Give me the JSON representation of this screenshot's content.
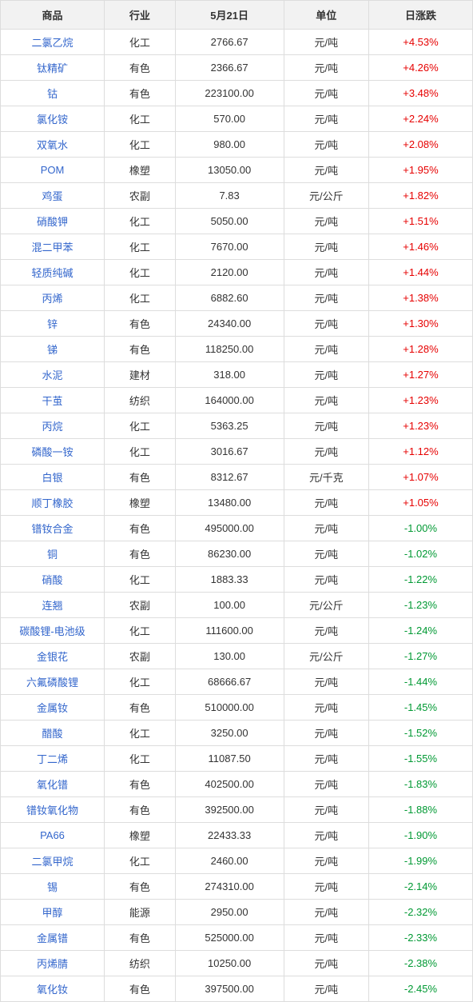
{
  "table": {
    "columns": [
      "商品",
      "行业",
      "5月21日",
      "单位",
      "日涨跌"
    ],
    "header_bg": "#f2f2f2",
    "header_color": "#333333",
    "border_color": "#dddddd",
    "product_color": "#3366cc",
    "positive_color": "#e60000",
    "negative_color": "#009933",
    "text_color": "#333333",
    "font_size": 13,
    "rows": [
      {
        "product": "二氯乙烷",
        "industry": "化工",
        "price": "2766.67",
        "unit": "元/吨",
        "change": "+4.53%",
        "dir": "pos"
      },
      {
        "product": "钛精矿",
        "industry": "有色",
        "price": "2366.67",
        "unit": "元/吨",
        "change": "+4.26%",
        "dir": "pos"
      },
      {
        "product": "钴",
        "industry": "有色",
        "price": "223100.00",
        "unit": "元/吨",
        "change": "+3.48%",
        "dir": "pos"
      },
      {
        "product": "氯化铵",
        "industry": "化工",
        "price": "570.00",
        "unit": "元/吨",
        "change": "+2.24%",
        "dir": "pos"
      },
      {
        "product": "双氧水",
        "industry": "化工",
        "price": "980.00",
        "unit": "元/吨",
        "change": "+2.08%",
        "dir": "pos"
      },
      {
        "product": "POM",
        "industry": "橡塑",
        "price": "13050.00",
        "unit": "元/吨",
        "change": "+1.95%",
        "dir": "pos"
      },
      {
        "product": "鸡蛋",
        "industry": "农副",
        "price": "7.83",
        "unit": "元/公斤",
        "change": "+1.82%",
        "dir": "pos"
      },
      {
        "product": "硝酸钾",
        "industry": "化工",
        "price": "5050.00",
        "unit": "元/吨",
        "change": "+1.51%",
        "dir": "pos"
      },
      {
        "product": "混二甲苯",
        "industry": "化工",
        "price": "7670.00",
        "unit": "元/吨",
        "change": "+1.46%",
        "dir": "pos"
      },
      {
        "product": "轻质纯碱",
        "industry": "化工",
        "price": "2120.00",
        "unit": "元/吨",
        "change": "+1.44%",
        "dir": "pos"
      },
      {
        "product": "丙烯",
        "industry": "化工",
        "price": "6882.60",
        "unit": "元/吨",
        "change": "+1.38%",
        "dir": "pos"
      },
      {
        "product": "锌",
        "industry": "有色",
        "price": "24340.00",
        "unit": "元/吨",
        "change": "+1.30%",
        "dir": "pos"
      },
      {
        "product": "锑",
        "industry": "有色",
        "price": "118250.00",
        "unit": "元/吨",
        "change": "+1.28%",
        "dir": "pos"
      },
      {
        "product": "水泥",
        "industry": "建材",
        "price": "318.00",
        "unit": "元/吨",
        "change": "+1.27%",
        "dir": "pos"
      },
      {
        "product": "干茧",
        "industry": "纺织",
        "price": "164000.00",
        "unit": "元/吨",
        "change": "+1.23%",
        "dir": "pos"
      },
      {
        "product": "丙烷",
        "industry": "化工",
        "price": "5363.25",
        "unit": "元/吨",
        "change": "+1.23%",
        "dir": "pos"
      },
      {
        "product": "磷酸一铵",
        "industry": "化工",
        "price": "3016.67",
        "unit": "元/吨",
        "change": "+1.12%",
        "dir": "pos"
      },
      {
        "product": "白银",
        "industry": "有色",
        "price": "8312.67",
        "unit": "元/千克",
        "change": "+1.07%",
        "dir": "pos"
      },
      {
        "product": "顺丁橡胶",
        "industry": "橡塑",
        "price": "13480.00",
        "unit": "元/吨",
        "change": "+1.05%",
        "dir": "pos"
      },
      {
        "product": "镨钕合金",
        "industry": "有色",
        "price": "495000.00",
        "unit": "元/吨",
        "change": "-1.00%",
        "dir": "neg"
      },
      {
        "product": "铜",
        "industry": "有色",
        "price": "86230.00",
        "unit": "元/吨",
        "change": "-1.02%",
        "dir": "neg"
      },
      {
        "product": "硝酸",
        "industry": "化工",
        "price": "1883.33",
        "unit": "元/吨",
        "change": "-1.22%",
        "dir": "neg"
      },
      {
        "product": "连翘",
        "industry": "农副",
        "price": "100.00",
        "unit": "元/公斤",
        "change": "-1.23%",
        "dir": "neg"
      },
      {
        "product": "碳酸锂-电池级",
        "industry": "化工",
        "price": "111600.00",
        "unit": "元/吨",
        "change": "-1.24%",
        "dir": "neg"
      },
      {
        "product": "金银花",
        "industry": "农副",
        "price": "130.00",
        "unit": "元/公斤",
        "change": "-1.27%",
        "dir": "neg"
      },
      {
        "product": "六氟磷酸锂",
        "industry": "化工",
        "price": "68666.67",
        "unit": "元/吨",
        "change": "-1.44%",
        "dir": "neg"
      },
      {
        "product": "金属钕",
        "industry": "有色",
        "price": "510000.00",
        "unit": "元/吨",
        "change": "-1.45%",
        "dir": "neg"
      },
      {
        "product": "醋酸",
        "industry": "化工",
        "price": "3250.00",
        "unit": "元/吨",
        "change": "-1.52%",
        "dir": "neg"
      },
      {
        "product": "丁二烯",
        "industry": "化工",
        "price": "11087.50",
        "unit": "元/吨",
        "change": "-1.55%",
        "dir": "neg"
      },
      {
        "product": "氧化镨",
        "industry": "有色",
        "price": "402500.00",
        "unit": "元/吨",
        "change": "-1.83%",
        "dir": "neg"
      },
      {
        "product": "镨钕氧化物",
        "industry": "有色",
        "price": "392500.00",
        "unit": "元/吨",
        "change": "-1.88%",
        "dir": "neg"
      },
      {
        "product": "PA66",
        "industry": "橡塑",
        "price": "22433.33",
        "unit": "元/吨",
        "change": "-1.90%",
        "dir": "neg"
      },
      {
        "product": "二氯甲烷",
        "industry": "化工",
        "price": "2460.00",
        "unit": "元/吨",
        "change": "-1.99%",
        "dir": "neg"
      },
      {
        "product": "锡",
        "industry": "有色",
        "price": "274310.00",
        "unit": "元/吨",
        "change": "-2.14%",
        "dir": "neg"
      },
      {
        "product": "甲醇",
        "industry": "能源",
        "price": "2950.00",
        "unit": "元/吨",
        "change": "-2.32%",
        "dir": "neg"
      },
      {
        "product": "金属镨",
        "industry": "有色",
        "price": "525000.00",
        "unit": "元/吨",
        "change": "-2.33%",
        "dir": "neg"
      },
      {
        "product": "丙烯腈",
        "industry": "纺织",
        "price": "10250.00",
        "unit": "元/吨",
        "change": "-2.38%",
        "dir": "neg"
      },
      {
        "product": "氧化钕",
        "industry": "有色",
        "price": "397500.00",
        "unit": "元/吨",
        "change": "-2.45%",
        "dir": "neg"
      }
    ]
  }
}
